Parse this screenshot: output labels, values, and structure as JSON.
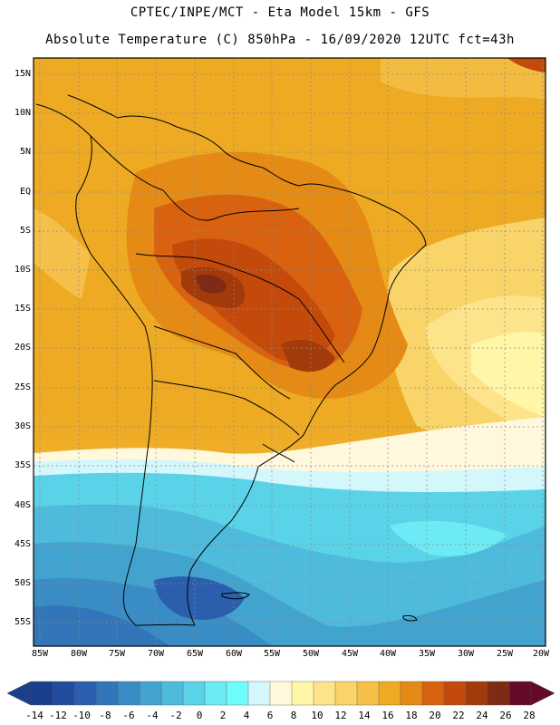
{
  "header": {
    "line1": "CPTEC/INPE/MCT -  Eta Model 15km - GFS",
    "line2": "Absolute Temperature (C) 850hPa - 16/09/2020 12UTC fct=43h"
  },
  "map": {
    "lat_labels": [
      "15N",
      "10N",
      "5N",
      "EQ",
      "5S",
      "10S",
      "15S",
      "20S",
      "25S",
      "30S",
      "35S",
      "40S",
      "45S",
      "50S",
      "55S"
    ],
    "lon_labels": [
      "85W",
      "80W",
      "75W",
      "70W",
      "65W",
      "60W",
      "55W",
      "50W",
      "45W",
      "40W",
      "35W",
      "30W",
      "25W",
      "20W"
    ]
  },
  "colorbar": {
    "labels": [
      "-14",
      "-12",
      "-10",
      "-8",
      "-6",
      "-4",
      "-2",
      "0",
      "2",
      "4",
      "6",
      "8",
      "10",
      "12",
      "14",
      "16",
      "18",
      "20",
      "22",
      "24",
      "26",
      "28"
    ],
    "colors": [
      "#1a3f8c",
      "#224d9e",
      "#2b5fae",
      "#3275b8",
      "#3a8cc4",
      "#43a3cf",
      "#4ebbdc",
      "#5ad3e8",
      "#6deaf3",
      "#6ffcfd",
      "#d4f7fc",
      "#fff8dc",
      "#fff6a8",
      "#fde48a",
      "#f9d468",
      "#f4c04a",
      "#eeaa22",
      "#e58a14",
      "#d86210",
      "#c44a0c",
      "#a23a0a",
      "#7e2a14",
      "#640a28"
    ]
  }
}
